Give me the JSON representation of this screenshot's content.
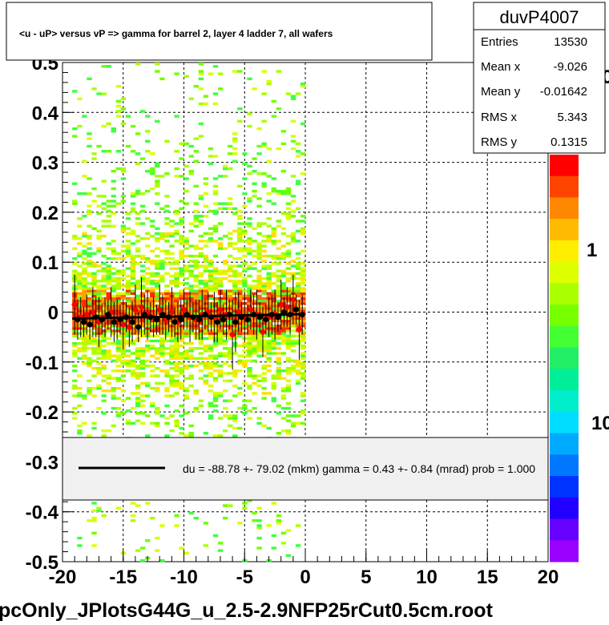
{
  "chart_data": {
    "type": "heatmap",
    "title": "<u - uP>       versus   vP =>  gamma for barrel 2, layer 4 ladder 7, all wafers",
    "xlim": [
      -20,
      20
    ],
    "ylim": [
      -0.5,
      0.5
    ],
    "x_ticks": [
      "-20",
      "-15",
      "-10",
      "-5",
      "0",
      "5",
      "10",
      "15",
      "20"
    ],
    "y_ticks": [
      "-0.5",
      "-0.4",
      "-0.3",
      "-0.2",
      "-0.1",
      "0",
      "0.1",
      "0.2",
      "0.3",
      "0.4",
      "0.5"
    ],
    "grid": true,
    "fill_x_range": [
      -19.2,
      0
    ],
    "red_points": {
      "x": [
        -19,
        -18.5,
        -18,
        -17.5,
        -17,
        -16.5,
        -16,
        -15.5,
        -15,
        -14.5,
        -14,
        -13.5,
        -13,
        -12.5,
        -12,
        -11.5,
        -11,
        -10.5,
        -10,
        -9.5,
        -9,
        -8.5,
        -8,
        -7.5,
        -7,
        -6.5,
        -6,
        -5.5,
        -5,
        -4.5,
        -4,
        -3.5,
        -3,
        -2.5,
        -2,
        -1.5,
        -1,
        -0.5
      ],
      "y": [
        0.015,
        -0.01,
        -0.005,
        0.0,
        -0.02,
        -0.01,
        0.0,
        -0.015,
        -0.025,
        -0.03,
        0.005,
        0.01,
        -0.005,
        -0.01,
        0.005,
        -0.015,
        0.0,
        -0.02,
        0.005,
        -0.01,
        -0.015,
        -0.005,
        0.0,
        -0.01,
        0.005,
        -0.005,
        -0.045,
        0.0,
        -0.01,
        0.005,
        -0.005,
        -0.04,
        -0.01,
        -0.005,
        0.015,
        0.01,
        0.025,
        -0.035
      ],
      "err": [
        0.06,
        0.04,
        0.04,
        0.05,
        0.05,
        0.04,
        0.05,
        0.04,
        0.05,
        0.04,
        0.05,
        0.06,
        0.05,
        0.04,
        0.05,
        0.04,
        0.05,
        0.04,
        0.04,
        0.05,
        0.04,
        0.05,
        0.04,
        0.05,
        0.04,
        0.05,
        0.07,
        0.04,
        0.05,
        0.04,
        0.05,
        0.05,
        0.04,
        0.05,
        0.05,
        0.04,
        0.05,
        0.06
      ]
    },
    "black_points": {
      "x": [
        -18.75,
        -18.25,
        -17.75,
        -17.25,
        -16.75,
        -16.25,
        -15.75,
        -15.25,
        -14.75,
        -14.25,
        -13.75,
        -13.25,
        -12.75,
        -12.25,
        -11.75,
        -11.25,
        -10.75,
        -10.25,
        -9.75,
        -9.25,
        -8.75,
        -8.25,
        -7.75,
        -7.25,
        -6.75,
        -6.25,
        -5.75,
        -5.25,
        -4.75,
        -4.25,
        -3.75,
        -3.25,
        -2.75,
        -2.25,
        -1.75,
        -1.25,
        -0.75,
        -0.25
      ],
      "y": [
        -0.015,
        -0.02,
        -0.025,
        -0.01,
        -0.015,
        -0.005,
        -0.02,
        -0.015,
        -0.01,
        -0.02,
        -0.03,
        -0.005,
        -0.01,
        -0.015,
        -0.005,
        -0.01,
        -0.02,
        -0.015,
        -0.005,
        -0.01,
        -0.015,
        -0.005,
        -0.01,
        -0.02,
        -0.015,
        -0.005,
        -0.02,
        -0.01,
        -0.015,
        -0.005,
        -0.01,
        -0.015,
        -0.005,
        -0.01,
        0.0,
        -0.005,
        0.005,
        -0.005
      ],
      "err": [
        0.04,
        0.03,
        0.03,
        0.04,
        0.03,
        0.03,
        0.04,
        0.03,
        0.03,
        0.04,
        0.03,
        0.04,
        0.03,
        0.03,
        0.04,
        0.03,
        0.03,
        0.04,
        0.03,
        0.03,
        0.04,
        0.03,
        0.03,
        0.04,
        0.03,
        0.03,
        0.06,
        0.03,
        0.03,
        0.04,
        0.03,
        0.03,
        0.04,
        0.03,
        0.03,
        0.04,
        0.03,
        0.04
      ]
    },
    "fit_line": {
      "x": [
        -19.2,
        0
      ],
      "y": [
        -0.013,
        -0.004
      ]
    },
    "legend": {
      "text": "du =  -88.78 +-  79.02 (mkm) gamma =    0.43 +-   0.84 (mrad) prob = 1.000"
    },
    "stats": {
      "name": "duvP4007",
      "rows": [
        {
          "label": "Entries",
          "value": "13530"
        },
        {
          "label": "Mean x",
          "value": "-9.026"
        },
        {
          "label": "Mean y",
          "value": "-0.01642"
        },
        {
          "label": "RMS x",
          "value": "5.343"
        },
        {
          "label": "RMS y",
          "value": "0.1315"
        }
      ]
    },
    "palette_labels": [
      "10",
      "1",
      "10"
    ],
    "palette_colors": [
      "#ff0000",
      "#ff4400",
      "#ff8800",
      "#ffbb00",
      "#ffee00",
      "#ddff00",
      "#aaff00",
      "#77ff00",
      "#44ff33",
      "#22ee66",
      "#00ee99",
      "#00eecc",
      "#00ddff",
      "#00aaff",
      "#0077ff",
      "#0033ff",
      "#2200ff",
      "#6600ff",
      "#9900ff"
    ],
    "heat_colors": [
      "#ffe000",
      "#d8ff00",
      "#a8ff00",
      "#70ff00",
      "#40ff40",
      "#ffa000",
      "#ff6a00",
      "#ff2a00"
    ]
  },
  "footer": {
    "filename": "pcOnly_JPlotsG44G_u_2.5-2.9NFP25rCut0.5cm.root"
  }
}
